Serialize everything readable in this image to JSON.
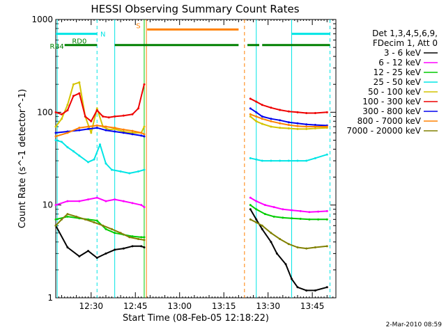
{
  "chart_data": {
    "type": "line",
    "title": "HESSI Observing Summary Count Rates",
    "xlabel": "Start Time (08-Feb-05 12:18:22)",
    "ylabel": "Count Rate (s^-1 detector^-1)",
    "yscale": "log",
    "ylim": [
      1,
      1000
    ],
    "xlim": [
      "12:18",
      "13:53"
    ],
    "y_ticks": [
      "1",
      "10",
      "100",
      "1000"
    ],
    "x_ticks": [
      "12:30",
      "12:45",
      "13:00",
      "13:15",
      "13:30",
      "13:45"
    ],
    "legend_header": [
      "Det 1,3,4,5,6,9,",
      "FDecim 1, Att 0"
    ],
    "legend_position": "right",
    "grid": false,
    "series": [
      {
        "name": "3 - 6 keV",
        "color": "#000000",
        "segments": [
          {
            "x": [
              "12:18",
              "12:22",
              "12:26",
              "12:29",
              "12:32",
              "12:35",
              "12:38",
              "12:41",
              "12:44",
              "12:47",
              "12:48"
            ],
            "y": [
              6,
              3.5,
              2.8,
              3.2,
              2.7,
              3.0,
              3.3,
              3.4,
              3.6,
              3.6,
              3.5
            ]
          },
          {
            "x": [
              "13:24",
              "13:26",
              "13:28",
              "13:31",
              "13:33",
              "13:36",
              "13:38",
              "13:40",
              "13:43",
              "13:46",
              "13:50"
            ],
            "y": [
              9,
              7,
              5.5,
              4,
              3,
              2.3,
              1.6,
              1.3,
              1.2,
              1.2,
              1.3
            ]
          }
        ]
      },
      {
        "name": "6 - 12 keV",
        "color": "#ff00ff",
        "segments": [
          {
            "x": [
              "12:18",
              "12:22",
              "12:26",
              "12:29",
              "12:32",
              "12:35",
              "12:38",
              "12:41",
              "12:44",
              "12:47",
              "12:48"
            ],
            "y": [
              10,
              11,
              11,
              11.5,
              12,
              11,
              11.5,
              11,
              10.5,
              10,
              9.5
            ]
          },
          {
            "x": [
              "13:24",
              "13:26",
              "13:29",
              "13:32",
              "13:35",
              "13:38",
              "13:41",
              "13:44",
              "13:47",
              "13:50"
            ],
            "y": [
              12,
              11,
              10,
              9.5,
              9,
              8.8,
              8.6,
              8.4,
              8.5,
              8.6
            ]
          }
        ]
      },
      {
        "name": "12 - 25 keV",
        "color": "#00cc00",
        "segments": [
          {
            "x": [
              "12:18",
              "12:22",
              "12:26",
              "12:29",
              "12:32",
              "12:35",
              "12:38",
              "12:41",
              "12:44",
              "12:47",
              "12:48"
            ],
            "y": [
              7,
              7.5,
              7.2,
              7,
              6.8,
              5.5,
              5,
              4.8,
              4.6,
              4.5,
              4.5
            ]
          },
          {
            "x": [
              "13:24",
              "13:26",
              "13:29",
              "13:32",
              "13:35",
              "13:38",
              "13:41",
              "13:44",
              "13:47",
              "13:50"
            ],
            "y": [
              10,
              9,
              8,
              7.5,
              7.3,
              7.2,
              7.1,
              7,
              7,
              7
            ]
          }
        ]
      },
      {
        "name": "25 - 50 keV",
        "color": "#00e5e5",
        "segments": [
          {
            "x": [
              "12:18",
              "12:20",
              "12:22",
              "12:24",
              "12:26",
              "12:29",
              "12:31",
              "12:33",
              "12:35",
              "12:37",
              "12:40",
              "12:43",
              "12:46",
              "12:48"
            ],
            "y": [
              50,
              48,
              42,
              38,
              34,
              29,
              31,
              45,
              28,
              24,
              23,
              22,
              23,
              24
            ]
          },
          {
            "x": [
              "13:24",
              "13:26",
              "13:28",
              "13:31",
              "13:34",
              "13:37",
              "13:40",
              "13:43",
              "13:46",
              "13:50"
            ],
            "y": [
              32,
              31,
              30,
              30,
              30,
              30,
              30,
              30,
              32,
              35
            ]
          }
        ]
      },
      {
        "name": "50 - 100 keV",
        "color": "#d4c400",
        "segments": [
          {
            "x": [
              "12:18",
              "12:20",
              "12:22",
              "12:24",
              "12:26",
              "12:28",
              "12:30",
              "12:32",
              "12:34",
              "12:36",
              "12:38",
              "12:41",
              "12:44",
              "12:47",
              "12:48"
            ],
            "y": [
              70,
              85,
              120,
              200,
              210,
              90,
              60,
              110,
              70,
              65,
              66,
              62,
              60,
              60,
              70
            ]
          },
          {
            "x": [
              "13:24",
              "13:26",
              "13:28",
              "13:31",
              "13:34",
              "13:37",
              "13:40",
              "13:43",
              "13:46",
              "13:50"
            ],
            "y": [
              90,
              80,
              75,
              70,
              68,
              67,
              66,
              66,
              67,
              68
            ]
          }
        ]
      },
      {
        "name": "100 - 300 keV",
        "color": "#ee0000",
        "segments": [
          {
            "x": [
              "12:18",
              "12:20",
              "12:22",
              "12:24",
              "12:26",
              "12:28",
              "12:30",
              "12:32",
              "12:34",
              "12:36",
              "12:38",
              "12:41",
              "12:44",
              "12:46",
              "12:48"
            ],
            "y": [
              100,
              95,
              105,
              150,
              160,
              90,
              80,
              105,
              90,
              88,
              90,
              92,
              95,
              110,
              200
            ]
          },
          {
            "x": [
              "13:24",
              "13:26",
              "13:28",
              "13:31",
              "13:34",
              "13:37",
              "13:40",
              "13:43",
              "13:46",
              "13:50"
            ],
            "y": [
              140,
              130,
              120,
              112,
              106,
              102,
              100,
              98,
              98,
              100
            ]
          }
        ]
      },
      {
        "name": "300 - 800 keV",
        "color": "#0000ee",
        "segments": [
          {
            "x": [
              "12:18",
              "12:22",
              "12:26",
              "12:29",
              "12:32",
              "12:35",
              "12:38",
              "12:41",
              "12:44",
              "12:47",
              "12:48"
            ],
            "y": [
              60,
              62,
              64,
              66,
              68,
              64,
              62,
              60,
              58,
              56,
              55
            ]
          },
          {
            "x": [
              "13:24",
              "13:26",
              "13:28",
              "13:31",
              "13:34",
              "13:37",
              "13:40",
              "13:43",
              "13:46",
              "13:50"
            ],
            "y": [
              110,
              100,
              90,
              85,
              82,
              78,
              76,
              74,
              73,
              72
            ]
          }
        ]
      },
      {
        "name": "800 - 7000 keV",
        "color": "#ff8000",
        "segments": [
          {
            "x": [
              "12:18",
              "12:22",
              "12:26",
              "12:29",
              "12:32",
              "12:35",
              "12:38",
              "12:41",
              "12:44",
              "12:47",
              "12:48"
            ],
            "y": [
              55,
              60,
              68,
              70,
              72,
              70,
              68,
              65,
              63,
              60,
              58
            ]
          },
          {
            "x": [
              "13:24",
              "13:26",
              "13:28",
              "13:31",
              "13:34",
              "13:37",
              "13:40",
              "13:43",
              "13:46",
              "13:50"
            ],
            "y": [
              95,
              90,
              85,
              80,
              76,
              73,
              71,
              70,
              70,
              70
            ]
          }
        ]
      },
      {
        "name": "7000 - 20000 keV",
        "color": "#808000",
        "segments": [
          {
            "x": [
              "12:18",
              "12:20",
              "12:22",
              "12:25",
              "12:28",
              "12:31",
              "12:34",
              "12:37",
              "12:40",
              "12:43",
              "12:46",
              "12:48"
            ],
            "y": [
              6,
              7,
              8,
              7.5,
              7,
              6.5,
              6,
              5.5,
              5,
              4.5,
              4.3,
              4.2
            ]
          },
          {
            "x": [
              "13:24",
              "13:26",
              "13:28",
              "13:31",
              "13:34",
              "13:37",
              "13:40",
              "13:43",
              "13:46",
              "13:50"
            ],
            "y": [
              7,
              6.5,
              6,
              5,
              4.3,
              3.8,
              3.5,
              3.4,
              3.5,
              3.6
            ]
          }
        ]
      }
    ],
    "vertical_markers": [
      {
        "x": "12:18:30",
        "color": "#00e5e5",
        "style": "solid"
      },
      {
        "x": "12:32",
        "color": "#00e5e5",
        "style": "dashed"
      },
      {
        "x": "12:38",
        "color": "#00e5e5",
        "style": "solid"
      },
      {
        "x": "12:48",
        "color": "#00cc00",
        "style": "solid"
      },
      {
        "x": "12:48:45",
        "color": "#ff8000",
        "style": "solid"
      },
      {
        "x": "13:22",
        "color": "#ff8000",
        "style": "dashed"
      },
      {
        "x": "13:26",
        "color": "#00e5e5",
        "style": "solid"
      },
      {
        "x": "13:38",
        "color": "#00e5e5",
        "style": "solid"
      },
      {
        "x": "13:51",
        "color": "#00e5e5",
        "style": "dashed"
      }
    ],
    "flag_bars": [
      {
        "label": "N",
        "color": "#00e5e5",
        "y": 700,
        "ranges": [
          [
            "12:18",
            "12:32"
          ],
          [
            "13:38",
            "13:51"
          ]
        ]
      },
      {
        "label": "RD0",
        "color": "#008000",
        "y": 530,
        "ranges": [
          [
            "12:21",
            "12:32"
          ],
          [
            "12:38",
            "13:20"
          ],
          [
            "13:23",
            "13:27"
          ],
          [
            "13:28",
            "13:51"
          ]
        ]
      },
      {
        "label": "RB4",
        "color": "#008000",
        "y": 470,
        "ranges": []
      },
      {
        "label": "S",
        "color": "#ff8000",
        "y": 780,
        "ranges": [
          [
            "12:49",
            "13:20"
          ]
        ]
      }
    ],
    "timestamp": "2-Mar-2010 08:59"
  }
}
